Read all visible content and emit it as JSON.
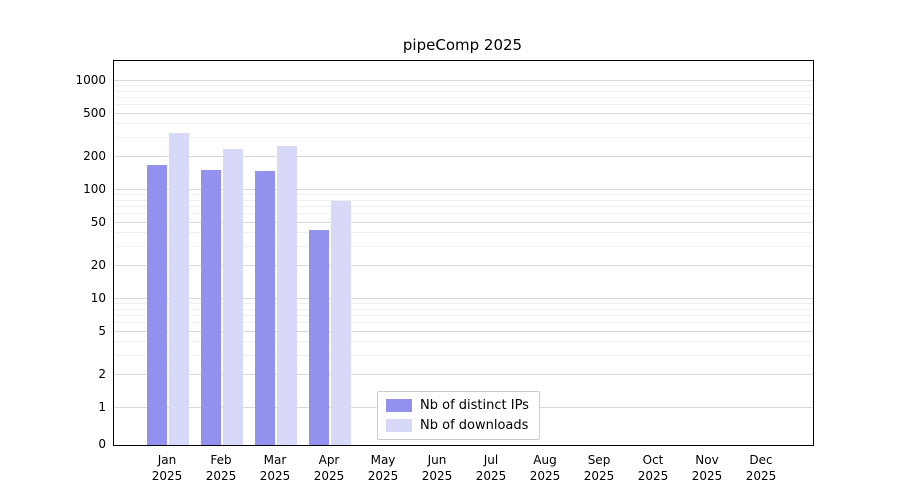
{
  "chart_data": {
    "type": "bar",
    "title": "pipeComp 2025",
    "xlabel": "",
    "ylabel": "",
    "categories": [
      "Jan\n2025",
      "Feb\n2025",
      "Mar\n2025",
      "Apr\n2025",
      "May\n2025",
      "Jun\n2025",
      "Jul\n2025",
      "Aug\n2025",
      "Sep\n2025",
      "Oct\n2025",
      "Nov\n2025",
      "Dec\n2025"
    ],
    "series": [
      {
        "name": "Nb of distinct IPs",
        "color": "#9292ee",
        "values": [
          170,
          152,
          148,
          43,
          0,
          0,
          0,
          0,
          0,
          0,
          0,
          0
        ]
      },
      {
        "name": "Nb of downloads",
        "color": "#d8d8f9",
        "values": [
          330,
          240,
          255,
          80,
          0,
          0,
          0,
          0,
          0,
          0,
          0,
          0
        ]
      }
    ],
    "yscale": "symlog",
    "yticks": [
      0,
      1,
      2,
      5,
      10,
      20,
      50,
      100,
      200,
      500,
      1000
    ],
    "yticks_minor": [
      3,
      4,
      6,
      7,
      8,
      9,
      30,
      40,
      60,
      70,
      80,
      90,
      300,
      400,
      600,
      700,
      800,
      900
    ],
    "ylim": [
      0,
      1500
    ],
    "grid": "horizontal major+minor, light gray",
    "legend_position": "inside lower-center-left",
    "colors": {
      "grid_major": "#d9d9d9",
      "grid_minor": "#efefef",
      "spine": "#000000"
    }
  }
}
